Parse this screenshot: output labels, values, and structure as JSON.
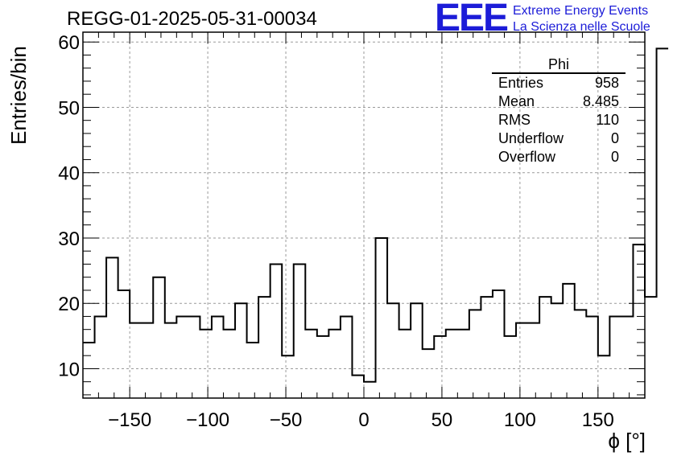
{
  "title": "REGG-01-2025-05-31-00034",
  "logo": {
    "mark": "EEE",
    "line1": "Extreme Energy Events",
    "line2": "La Scienza nelle Scuole"
  },
  "stats": {
    "title": "Phi",
    "rows": [
      {
        "label": "Entries",
        "value": "958"
      },
      {
        "label": "Mean",
        "value": "8.485"
      },
      {
        "label": "RMS",
        "value": "110"
      },
      {
        "label": "Underflow",
        "value": "0"
      },
      {
        "label": "Overflow",
        "value": "0"
      }
    ]
  },
  "chart_data": {
    "type": "bar",
    "histogram": true,
    "title": "REGG-01-2025-05-31-00034",
    "xlabel": "ϕ [°]",
    "ylabel": "Entries/bin",
    "xlim": [
      -180,
      180
    ],
    "ylim": [
      5.5,
      61.5
    ],
    "bin_width": 7.5,
    "bin_start": -180,
    "values": [
      14,
      18,
      27,
      22,
      17,
      17,
      24,
      17,
      18,
      18,
      16,
      18,
      16,
      20,
      14,
      21,
      26,
      12,
      26,
      16,
      15,
      16,
      18,
      9,
      8,
      30,
      20,
      16,
      20,
      13,
      15,
      16,
      16,
      19,
      21,
      22,
      15,
      17,
      17,
      21,
      20,
      23,
      19,
      18,
      12,
      18,
      18,
      29,
      21,
      59
    ],
    "xticks": [
      -150,
      -100,
      -50,
      0,
      50,
      100,
      150
    ],
    "xtick_labels": [
      "−150",
      "−100",
      "−50",
      "0",
      "50",
      "100",
      "150"
    ],
    "yticks": [
      10,
      20,
      30,
      40,
      50,
      60
    ],
    "ytick_labels": [
      "10",
      "20",
      "30",
      "40",
      "50",
      "60"
    ],
    "grid": true,
    "legend": "top-right"
  }
}
